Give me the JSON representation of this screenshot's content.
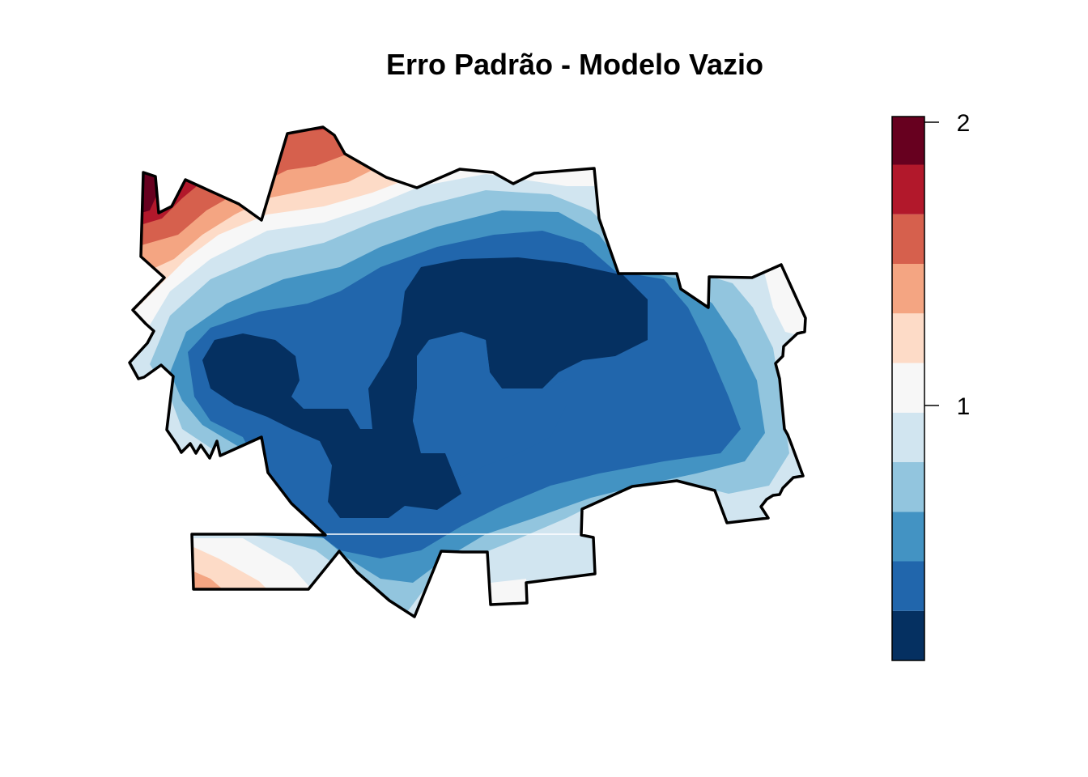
{
  "chart_data": {
    "type": "heatmap",
    "title": "Erro Padrão - Modelo Vazio",
    "xlabel": "",
    "ylabel": "",
    "legend": {
      "placement": "right",
      "range": [
        0.1,
        2.02
      ],
      "ticks": [
        1,
        2
      ],
      "tick_labels": [
        "1",
        "2"
      ],
      "bins": [
        {
          "from": 0.1,
          "to": 0.275,
          "color": "#053061"
        },
        {
          "from": 0.275,
          "to": 0.45,
          "color": "#2166AC"
        },
        {
          "from": 0.45,
          "to": 0.625,
          "color": "#4393C3"
        },
        {
          "from": 0.625,
          "to": 0.8,
          "color": "#92C5DE"
        },
        {
          "from": 0.8,
          "to": 0.975,
          "color": "#D1E5F0"
        },
        {
          "from": 0.975,
          "to": 1.15,
          "color": "#F7F7F7"
        },
        {
          "from": 1.15,
          "to": 1.325,
          "color": "#FDDBC7"
        },
        {
          "from": 1.325,
          "to": 1.5,
          "color": "#F4A582"
        },
        {
          "from": 1.5,
          "to": 1.675,
          "color": "#D6604D"
        },
        {
          "from": 1.675,
          "to": 1.85,
          "color": "#B2182B"
        },
        {
          "from": 1.85,
          "to": 2.02,
          "color": "#67001F"
        }
      ]
    },
    "grid": false
  }
}
